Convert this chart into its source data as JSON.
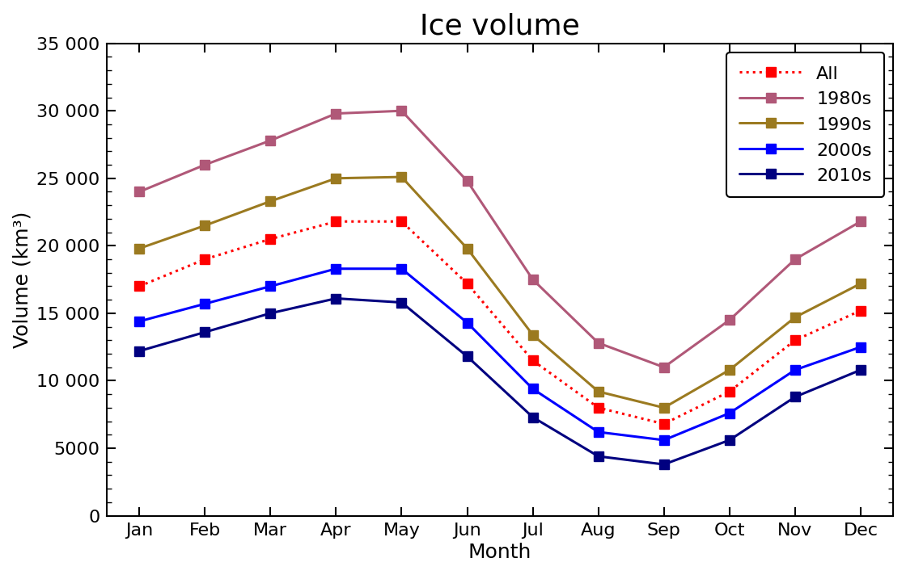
{
  "title": "Ice volume",
  "xlabel": "Month",
  "ylabel": "Volume (km³)",
  "months": [
    "Jan",
    "Feb",
    "Mar",
    "Apr",
    "May",
    "Jun",
    "Jul",
    "Aug",
    "Sep",
    "Oct",
    "Nov",
    "Dec"
  ],
  "series": {
    "All": {
      "values": [
        17000,
        19000,
        20500,
        21800,
        21800,
        17200,
        11500,
        8000,
        6800,
        9200,
        13000,
        15200
      ],
      "color": "#ff0000",
      "linestyle": "dotted",
      "linewidth": 2.2,
      "marker": "s",
      "markersize": 8,
      "zorder": 3
    },
    "1980s": {
      "values": [
        24000,
        26000,
        27800,
        29800,
        30000,
        24800,
        17500,
        12800,
        11000,
        14500,
        19000,
        21800
      ],
      "color": "#b05878",
      "linestyle": "solid",
      "linewidth": 2.2,
      "marker": "s",
      "markersize": 8,
      "zorder": 4
    },
    "1990s": {
      "values": [
        19800,
        21500,
        23300,
        25000,
        25100,
        19800,
        13400,
        9200,
        8000,
        10800,
        14700,
        17200
      ],
      "color": "#9b7a20",
      "linestyle": "solid",
      "linewidth": 2.2,
      "marker": "s",
      "markersize": 8,
      "zorder": 5
    },
    "2000s": {
      "values": [
        14400,
        15700,
        17000,
        18300,
        18300,
        14300,
        9400,
        6200,
        5600,
        7600,
        10800,
        12500
      ],
      "color": "#0000ff",
      "linestyle": "solid",
      "linewidth": 2.2,
      "marker": "s",
      "markersize": 8,
      "zorder": 6
    },
    "2010s": {
      "values": [
        12200,
        13600,
        15000,
        16100,
        15800,
        11800,
        7300,
        4400,
        3800,
        5600,
        8800,
        10800
      ],
      "color": "#000080",
      "linestyle": "solid",
      "linewidth": 2.2,
      "marker": "s",
      "markersize": 8,
      "zorder": 7
    }
  },
  "ylim": [
    0,
    35000
  ],
  "yticks": [
    0,
    5000,
    10000,
    15000,
    20000,
    25000,
    30000,
    35000
  ],
  "ytick_labels": [
    "0",
    "5000",
    "10 000",
    "15 000",
    "20 000",
    "25 000",
    "30 000",
    "35 000"
  ],
  "legend_order": [
    "All",
    "1980s",
    "1990s",
    "2000s",
    "2010s"
  ],
  "legend_loc": "upper right",
  "bg_color": "#ffffff",
  "title_fontsize": 26,
  "label_fontsize": 18,
  "tick_fontsize": 16,
  "legend_fontsize": 16
}
